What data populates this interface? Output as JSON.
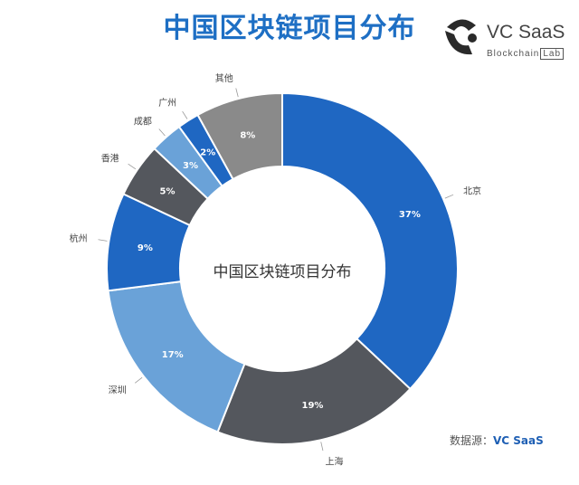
{
  "title": "中国区块链项目分布",
  "logo": {
    "brand": "VC SaaS",
    "sub_prefix": "Blockchain",
    "sub_boxed": "Lab"
  },
  "source": {
    "label": "数据源：",
    "value": "VC SaaS"
  },
  "chart_data": {
    "type": "pie",
    "style": "donut",
    "center_label": "中国区块链项目分布",
    "categories": [
      "北京",
      "上海",
      "深圳",
      "杭州",
      "香港",
      "成都",
      "广州",
      "其他"
    ],
    "values": [
      37,
      19,
      17,
      9,
      5,
      3,
      2,
      8
    ],
    "value_labels": [
      "37%",
      "19%",
      "17%",
      "9%",
      "5%",
      "3%",
      "2%",
      "8%"
    ],
    "colors": [
      "#1f67c2",
      "#54575d",
      "#6aa2d8",
      "#1f67c2",
      "#54575d",
      "#6aa2d8",
      "#1f67c2",
      "#8a8a8a"
    ]
  }
}
